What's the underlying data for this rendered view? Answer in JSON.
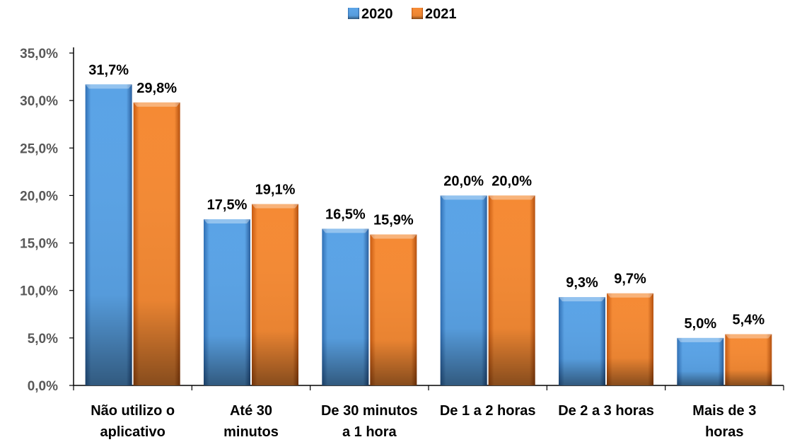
{
  "chart_data": {
    "type": "bar",
    "categories": [
      [
        "Não utilizo o",
        "aplicativo"
      ],
      [
        "Até 30",
        "minutos"
      ],
      [
        "De 30 minutos",
        "a 1 hora"
      ],
      [
        "De 1 a 2 horas"
      ],
      [
        "De 2 a 3 horas"
      ],
      [
        "Mais de 3",
        "horas"
      ]
    ],
    "series": [
      {
        "name": "2020",
        "values": [
          31.7,
          17.5,
          16.5,
          20.0,
          9.3,
          5.0
        ],
        "labels": [
          "31,7%",
          "17,5%",
          "16,5%",
          "20,0%",
          "9,3%",
          "5,0%"
        ],
        "color": "#4a90d9"
      },
      {
        "name": "2021",
        "values": [
          29.8,
          19.1,
          15.9,
          20.0,
          9.7,
          5.4
        ],
        "labels": [
          "29,8%",
          "19,1%",
          "15,9%",
          "20,0%",
          "9,7%",
          "5,4%"
        ],
        "color": "#f07b22"
      }
    ],
    "ylim": [
      0,
      35
    ],
    "yticks": [
      0,
      5,
      10,
      15,
      20,
      25,
      30,
      35
    ],
    "ytick_labels": [
      "0,0%",
      "5,0%",
      "10,0%",
      "15,0%",
      "20,0%",
      "25,0%",
      "30,0%",
      "35,0%"
    ],
    "legend_position": "top-center",
    "grid": false
  }
}
